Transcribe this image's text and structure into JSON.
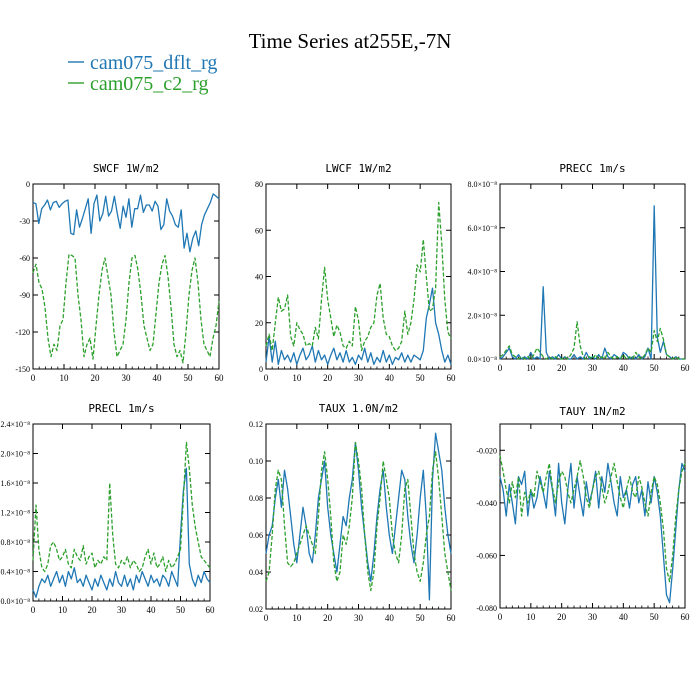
{
  "figure": {
    "title": "Time Series at255E,-7N",
    "legend": [
      {
        "label": "cam075_dflt_rg",
        "color": "#1f77b4"
      },
      {
        "label": "cam075_c2_rg",
        "color": "#2ca02c"
      }
    ]
  },
  "chart_data": [
    {
      "type": "line",
      "title": "SWCF   1W/m2",
      "xlim": [
        0,
        60
      ],
      "ylim": [
        -150,
        0
      ],
      "xticks": [
        0,
        10,
        20,
        30,
        40,
        50,
        60
      ],
      "xtick_labels": [
        "0",
        "10",
        "20",
        "30",
        "40",
        "50",
        "60"
      ],
      "yticks": [
        0,
        -30,
        -60,
        -90,
        -120,
        -150
      ],
      "ytick_labels": [
        "0",
        "-30",
        "-60",
        "-90",
        "-120",
        "-150"
      ],
      "series": [
        {
          "name": "cam075_dflt_rg",
          "style": "solid",
          "color": "#1f77b4",
          "values": [
            -15,
            -16,
            -32,
            -20,
            -17,
            -13,
            -21,
            -15,
            -14,
            -19,
            -16,
            -14,
            -13,
            -40,
            -41,
            -21,
            -35,
            -28,
            -20,
            -12,
            -40,
            -16,
            -9,
            -30,
            -24,
            -10,
            -26,
            -22,
            -10,
            -24,
            -36,
            -18,
            -27,
            -12,
            -35,
            -20,
            -20,
            -9,
            -23,
            -17,
            -17,
            -22,
            -14,
            -18,
            -37,
            -33,
            -12,
            -22,
            -26,
            -33,
            -35,
            -21,
            -52,
            -40,
            -55,
            -44,
            -38,
            -50,
            -33,
            -25,
            -20,
            -15,
            -8,
            -10,
            -12
          ]
        },
        {
          "name": "cam075_c2_rg",
          "style": "dashed",
          "color": "#2ca02c",
          "values": [
            -72,
            -65,
            -80,
            -85,
            -100,
            -125,
            -140,
            -130,
            -135,
            -115,
            -110,
            -80,
            -57,
            -58,
            -60,
            -90,
            -110,
            -140,
            -130,
            -125,
            -142,
            -115,
            -90,
            -70,
            -60,
            -75,
            -90,
            -120,
            -140,
            -135,
            -130,
            -110,
            -80,
            -60,
            -58,
            -70,
            -90,
            -115,
            -125,
            -135,
            -130,
            -105,
            -80,
            -65,
            -58,
            -75,
            -100,
            -130,
            -140,
            -135,
            -145,
            -120,
            -90,
            -70,
            -60,
            -80,
            -110,
            -130,
            -135,
            -140,
            -125,
            -115,
            -95
          ]
        }
      ]
    },
    {
      "type": "line",
      "title": "LWCF   1W/m2",
      "xlim": [
        0,
        60
      ],
      "ylim": [
        0,
        80
      ],
      "xticks": [
        0,
        10,
        20,
        30,
        40,
        50,
        60
      ],
      "xtick_labels": [
        "0",
        "10",
        "20",
        "30",
        "40",
        "50",
        "60"
      ],
      "yticks": [
        0,
        20,
        40,
        60,
        80
      ],
      "ytick_labels": [
        "0",
        "20",
        "40",
        "60",
        "80"
      ],
      "series": [
        {
          "name": "cam075_dflt_rg",
          "style": "solid",
          "color": "#1f77b4",
          "values": [
            3,
            14,
            3,
            12,
            2,
            8,
            4,
            6,
            3,
            7,
            2,
            6,
            9,
            4,
            6,
            10,
            3,
            8,
            4,
            6,
            2,
            6,
            9,
            4,
            7,
            3,
            8,
            3,
            5,
            2,
            6,
            4,
            9,
            3,
            7,
            2,
            5,
            3,
            8,
            3,
            6,
            2,
            5,
            4,
            7,
            3,
            6,
            3,
            6,
            5,
            4,
            8,
            22,
            28,
            35,
            20,
            15,
            8,
            3,
            6,
            2
          ]
        },
        {
          "name": "cam075_c2_rg",
          "style": "dashed",
          "color": "#2ca02c",
          "values": [
            10,
            15,
            8,
            20,
            31,
            25,
            26,
            32,
            14,
            10,
            20,
            17,
            15,
            10,
            11,
            10,
            18,
            13,
            30,
            44,
            30,
            22,
            14,
            19,
            16,
            10,
            9,
            12,
            10,
            27,
            21,
            8,
            12,
            14,
            18,
            20,
            32,
            37,
            22,
            15,
            14,
            10,
            8,
            9,
            12,
            25,
            15,
            20,
            30,
            45,
            42,
            56,
            40,
            25,
            26,
            35,
            72,
            54,
            30,
            16,
            13
          ]
        }
      ]
    },
    {
      "type": "line",
      "title": "PRECC   1m/s",
      "xlim": [
        0,
        60
      ],
      "ylim": [
        0,
        8e-08
      ],
      "xticks": [
        0,
        10,
        20,
        30,
        40,
        50,
        60
      ],
      "xtick_labels": [
        "0",
        "10",
        "20",
        "30",
        "40",
        "50",
        "60"
      ],
      "yticks": [
        0,
        2e-08,
        4e-08,
        6e-08,
        8e-08
      ],
      "ytick_labels": [
        "0.0×10⁻⁸",
        "2.0×10⁻⁸",
        "4.0×10⁻⁸",
        "6.0×10⁻⁸",
        "8.0×10⁻⁸"
      ],
      "series": [
        {
          "name": "cam075_dflt_rg",
          "style": "solid",
          "color": "#1f77b4",
          "values": [
            0,
            1e-09,
            3e-09,
            5e-09,
            1e-09,
            0,
            2e-09,
            0,
            1e-09,
            0,
            3e-09,
            0,
            1e-09,
            0,
            3.3e-08,
            3e-09,
            0,
            1e-09,
            0,
            2e-09,
            0,
            1e-09,
            0,
            0,
            2e-09,
            0,
            1e-09,
            0,
            3e-09,
            0,
            1e-09,
            0,
            2e-09,
            0,
            5e-09,
            1e-09,
            0,
            2e-09,
            1e-09,
            0,
            3e-09,
            2e-09,
            0,
            1e-09,
            0,
            2e-09,
            0,
            1e-09,
            5e-09,
            0,
            7e-08,
            1e-08,
            3e-09,
            8e-09,
            2e-09,
            1e-09,
            0,
            1e-09,
            0,
            0,
            0
          ]
        },
        {
          "name": "cam075_c2_rg",
          "style": "dashed",
          "color": "#2ca02c",
          "values": [
            1e-09,
            2e-09,
            4e-09,
            6e-09,
            2e-09,
            1e-09,
            0,
            1e-09,
            0,
            1e-09,
            0,
            2e-09,
            5e-09,
            3e-09,
            1e-09,
            0,
            1e-09,
            0,
            1e-09,
            0,
            0,
            1e-09,
            0,
            2e-09,
            5e-09,
            1.7e-08,
            6e-09,
            1e-09,
            0,
            1e-09,
            0,
            2e-09,
            0,
            1e-09,
            0,
            3e-09,
            1e-09,
            0,
            1e-09,
            0,
            2e-09,
            0,
            1e-09,
            0,
            3e-09,
            1e-09,
            0,
            2e-09,
            5e-09,
            3e-09,
            1.3e-08,
            8e-09,
            1.4e-08,
            9e-09,
            2e-09,
            1e-09,
            0,
            1e-09,
            0,
            0,
            0
          ]
        }
      ]
    },
    {
      "type": "line",
      "title": "PRECL   1m/s",
      "xlim": [
        0,
        60
      ],
      "ylim": [
        0,
        2.4e-08
      ],
      "xticks": [
        0,
        10,
        20,
        30,
        40,
        50,
        60
      ],
      "xtick_labels": [
        "0",
        "10",
        "20",
        "30",
        "40",
        "50",
        "60"
      ],
      "yticks": [
        0,
        4e-09,
        8e-09,
        1.2e-08,
        1.6e-08,
        2e-08,
        2.4e-08
      ],
      "ytick_labels": [
        "0.0×10⁻⁸",
        "0.4×10⁻⁸",
        "0.8×10⁻⁸",
        "1.2×10⁻⁸",
        "1.6×10⁻⁸",
        "2.0×10⁻⁸",
        "2.4×10⁻⁸"
      ],
      "series": [
        {
          "name": "cam075_dflt_rg",
          "style": "solid",
          "color": "#1f77b4",
          "values": [
            1.5e-09,
            5e-10,
            2e-09,
            3e-09,
            2.5e-09,
            3.5e-09,
            2e-09,
            3e-09,
            4e-09,
            2.5e-09,
            3.5e-09,
            2e-09,
            4e-09,
            3e-09,
            4.5e-09,
            2.5e-09,
            3e-09,
            2e-09,
            3.5e-09,
            2.5e-09,
            1.5e-09,
            3e-09,
            2e-09,
            3.5e-09,
            2.5e-09,
            1.5e-09,
            3e-09,
            2e-09,
            4e-09,
            2.5e-09,
            2e-09,
            3.5e-09,
            2e-09,
            3e-09,
            1.5e-09,
            3.5e-09,
            2.5e-09,
            4e-09,
            3e-09,
            2e-09,
            3.5e-09,
            2.5e-09,
            3e-09,
            2e-09,
            3.5e-09,
            3e-09,
            2e-09,
            4e-09,
            3e-09,
            2e-09,
            9e-09,
            1.5e-08,
            1.8e-08,
            5e-09,
            3e-09,
            2e-09,
            3.5e-09,
            2.5e-09,
            4e-09,
            3e-09,
            2.5e-09
          ]
        },
        {
          "name": "cam075_c2_rg",
          "style": "dashed",
          "color": "#2ca02c",
          "values": [
            5.5e-09,
            1.3e-08,
            7e-09,
            4.5e-09,
            4e-09,
            5e-09,
            7.5e-09,
            8e-09,
            7e-09,
            5.5e-09,
            6e-09,
            7e-09,
            5e-09,
            4.5e-09,
            7e-09,
            6e-09,
            5.5e-09,
            7.5e-09,
            5e-09,
            6e-09,
            6.5e-09,
            4.5e-09,
            5.5e-09,
            5e-09,
            6e-09,
            5.5e-09,
            1.6e-08,
            9e-09,
            5e-09,
            4.5e-09,
            5.5e-09,
            5e-09,
            6e-09,
            4.5e-09,
            5.5e-09,
            5e-09,
            4e-09,
            4.5e-09,
            6e-09,
            7e-09,
            5e-09,
            6.5e-09,
            4.5e-09,
            5e-09,
            6e-09,
            4e-09,
            5.5e-09,
            4.5e-09,
            5e-09,
            6e-09,
            7e-09,
            1.4e-08,
            2.15e-08,
            1.8e-08,
            1.3e-08,
            1e-08,
            8e-09,
            6e-09,
            5.5e-09,
            5e-09,
            4.5e-09
          ]
        }
      ]
    },
    {
      "type": "line",
      "title": "TAUX   1.0N/m2",
      "xlim": [
        0,
        60
      ],
      "ylim": [
        0.02,
        0.12
      ],
      "xticks": [
        0,
        10,
        20,
        30,
        40,
        50,
        60
      ],
      "xtick_labels": [
        "0",
        "10",
        "20",
        "30",
        "40",
        "50",
        "60"
      ],
      "yticks": [
        0.02,
        0.04,
        0.06,
        0.08,
        0.1,
        0.12
      ],
      "ytick_labels": [
        "0.02",
        "0.04",
        "0.06",
        "0.08",
        "0.10",
        "0.12"
      ],
      "series": [
        {
          "name": "cam075_dflt_rg",
          "style": "solid",
          "color": "#1f77b4",
          "values": [
            0.05,
            0.06,
            0.065,
            0.08,
            0.09,
            0.075,
            0.095,
            0.085,
            0.07,
            0.055,
            0.045,
            0.06,
            0.075,
            0.065,
            0.05,
            0.045,
            0.06,
            0.08,
            0.09,
            0.1,
            0.075,
            0.06,
            0.05,
            0.04,
            0.055,
            0.07,
            0.065,
            0.08,
            0.09,
            0.11,
            0.095,
            0.075,
            0.06,
            0.045,
            0.035,
            0.05,
            0.07,
            0.085,
            0.095,
            0.075,
            0.06,
            0.05,
            0.065,
            0.08,
            0.095,
            0.09,
            0.07,
            0.055,
            0.045,
            0.06,
            0.08,
            0.095,
            0.07,
            0.025,
            0.09,
            0.115,
            0.105,
            0.095,
            0.075,
            0.06,
            0.05
          ]
        },
        {
          "name": "cam075_c2_rg",
          "style": "dashed",
          "color": "#2ca02c",
          "values": [
            0.035,
            0.04,
            0.06,
            0.085,
            0.095,
            0.09,
            0.065,
            0.045,
            0.043,
            0.045,
            0.05,
            0.055,
            0.06,
            0.065,
            0.06,
            0.055,
            0.05,
            0.07,
            0.095,
            0.105,
            0.09,
            0.07,
            0.045,
            0.035,
            0.04,
            0.06,
            0.055,
            0.065,
            0.08,
            0.11,
            0.1,
            0.085,
            0.06,
            0.04,
            0.03,
            0.04,
            0.065,
            0.08,
            0.1,
            0.09,
            0.08,
            0.06,
            0.05,
            0.045,
            0.06,
            0.085,
            0.09,
            0.07,
            0.05,
            0.04,
            0.035,
            0.045,
            0.06,
            0.07,
            0.095,
            0.105,
            0.09,
            0.07,
            0.05,
            0.04,
            0.03
          ]
        }
      ]
    },
    {
      "type": "line",
      "title": "TAUY   1N/m2",
      "xlim": [
        0,
        60
      ],
      "ylim": [
        -0.08,
        -0.01
      ],
      "xticks": [
        0,
        10,
        20,
        30,
        40,
        50,
        60
      ],
      "xtick_labels": [
        "0",
        "10",
        "20",
        "30",
        "40",
        "50",
        "60"
      ],
      "yticks": [
        -0.02,
        -0.04,
        -0.06,
        -0.08
      ],
      "ytick_labels": [
        "-0.020",
        "-0.040",
        "-0.060",
        "-0.080"
      ],
      "series": [
        {
          "name": "cam075_dflt_rg",
          "style": "solid",
          "color": "#1f77b4",
          "values": [
            -0.03,
            -0.035,
            -0.045,
            -0.033,
            -0.04,
            -0.048,
            -0.03,
            -0.033,
            -0.028,
            -0.045,
            -0.035,
            -0.042,
            -0.038,
            -0.03,
            -0.036,
            -0.042,
            -0.028,
            -0.035,
            -0.045,
            -0.025,
            -0.04,
            -0.048,
            -0.035,
            -0.025,
            -0.042,
            -0.03,
            -0.038,
            -0.045,
            -0.032,
            -0.04,
            -0.035,
            -0.028,
            -0.042,
            -0.03,
            -0.036,
            -0.025,
            -0.032,
            -0.04,
            -0.045,
            -0.03,
            -0.038,
            -0.035,
            -0.042,
            -0.033,
            -0.03,
            -0.04,
            -0.035,
            -0.045,
            -0.032,
            -0.04,
            -0.03,
            -0.036,
            -0.045,
            -0.06,
            -0.075,
            -0.078,
            -0.065,
            -0.05,
            -0.035,
            -0.025,
            -0.028
          ]
        },
        {
          "name": "cam075_c2_rg",
          "style": "dashed",
          "color": "#2ca02c",
          "values": [
            -0.022,
            -0.028,
            -0.035,
            -0.04,
            -0.032,
            -0.038,
            -0.03,
            -0.045,
            -0.036,
            -0.04,
            -0.035,
            -0.038,
            -0.028,
            -0.032,
            -0.036,
            -0.03,
            -0.025,
            -0.034,
            -0.04,
            -0.032,
            -0.028,
            -0.03,
            -0.036,
            -0.04,
            -0.035,
            -0.03,
            -0.024,
            -0.03,
            -0.038,
            -0.042,
            -0.035,
            -0.03,
            -0.028,
            -0.034,
            -0.04,
            -0.036,
            -0.03,
            -0.025,
            -0.032,
            -0.038,
            -0.042,
            -0.035,
            -0.03,
            -0.036,
            -0.038,
            -0.03,
            -0.034,
            -0.04,
            -0.045,
            -0.036,
            -0.03,
            -0.033,
            -0.04,
            -0.05,
            -0.065,
            -0.07,
            -0.06,
            -0.045,
            -0.035,
            -0.028,
            -0.025
          ]
        }
      ]
    }
  ]
}
